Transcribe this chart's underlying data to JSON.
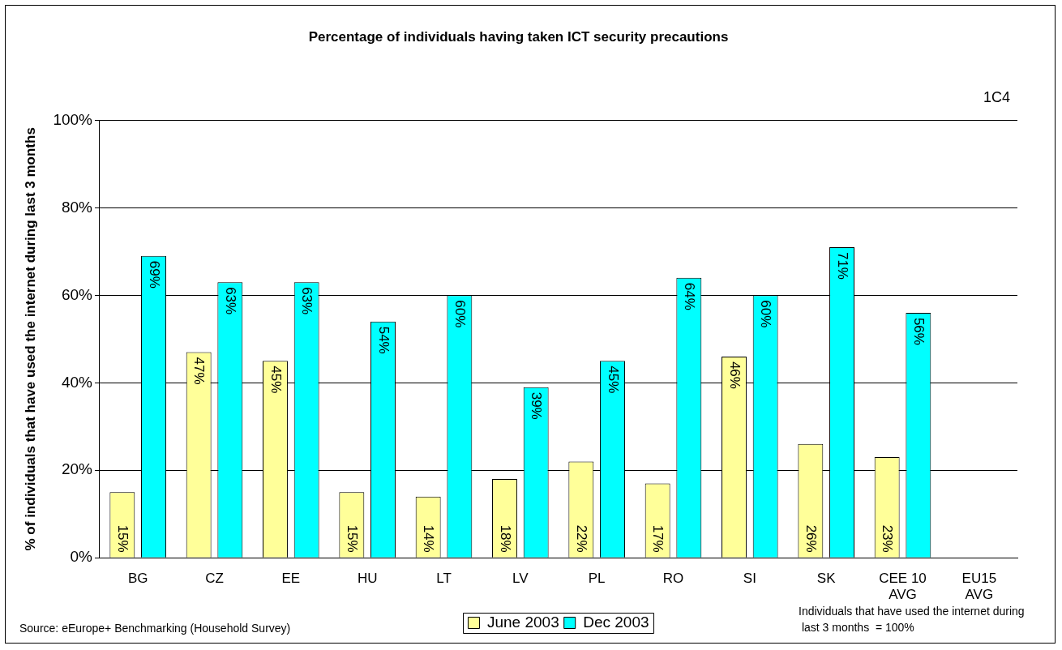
{
  "chart_data": {
    "type": "bar",
    "title": "Percentage of individuals having taken ICT security precautions",
    "ylabel": "% of individuals that have used the internet during last 3 months",
    "categories": [
      "BG",
      "CZ",
      "EE",
      "HU",
      "LT",
      "LV",
      "PL",
      "RO",
      "SI",
      "SK",
      "CEE 10 AVG",
      "EU15 AVG"
    ],
    "series": [
      {
        "name": "June 2003",
        "color": "#ffff99",
        "values": [
          15,
          47,
          45,
          15,
          14,
          18,
          22,
          17,
          46,
          26,
          23,
          null
        ],
        "value_labels": [
          "15%",
          "47%",
          "45%",
          "15%",
          "14%",
          "18%",
          "22%",
          "17%",
          "46%",
          "26%",
          "23%",
          null
        ]
      },
      {
        "name": "Dec 2003",
        "color": "#00ffff",
        "values": [
          69,
          63,
          63,
          54,
          60,
          39,
          45,
          64,
          60,
          71,
          56,
          null
        ],
        "value_labels": [
          "69%",
          "63%",
          "63%",
          "54%",
          "60%",
          "39%",
          "45%",
          "64%",
          "60%",
          "71%",
          "56%",
          null
        ]
      }
    ],
    "ylim": [
      0,
      100
    ],
    "yticks": [
      {
        "value": 0,
        "label": "0%"
      },
      {
        "value": 20,
        "label": "20%"
      },
      {
        "value": 40,
        "label": "40%"
      },
      {
        "value": 60,
        "label": "60%"
      },
      {
        "value": 80,
        "label": "80%"
      },
      {
        "value": 100,
        "label": "100%"
      }
    ],
    "grid": "y",
    "legend": "bottom",
    "annotations": [
      "1C4",
      "Source: eEurope+ Benchmarking (Household Survey)",
      "Individuals that have used the internet during last 3 months  = 100%"
    ]
  }
}
